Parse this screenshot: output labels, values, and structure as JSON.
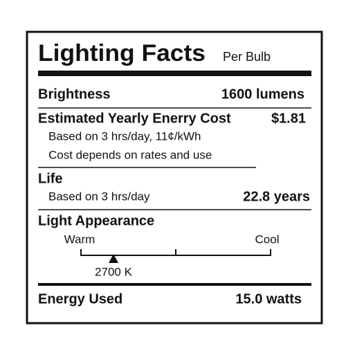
{
  "header": {
    "title": "Lighting Facts",
    "subtitle": "Per Bulb"
  },
  "brightness": {
    "label": "Brightness",
    "value": "1600 lumens"
  },
  "cost": {
    "label": "Estimated Yearly Enerry Cost",
    "value": "$1.81",
    "notes": [
      "Based on 3 hrs/day, 11¢/kWh",
      "Cost depends on rates and use"
    ]
  },
  "life": {
    "label": "Life",
    "note": "Based on 3 hrs/day",
    "value": "22.8 years"
  },
  "appearance": {
    "label": "Light Appearance",
    "warm": "Warm",
    "cool": "Cool",
    "value": "2700 K"
  },
  "energy": {
    "label": "Energy Used",
    "value": "15.0 watts"
  }
}
